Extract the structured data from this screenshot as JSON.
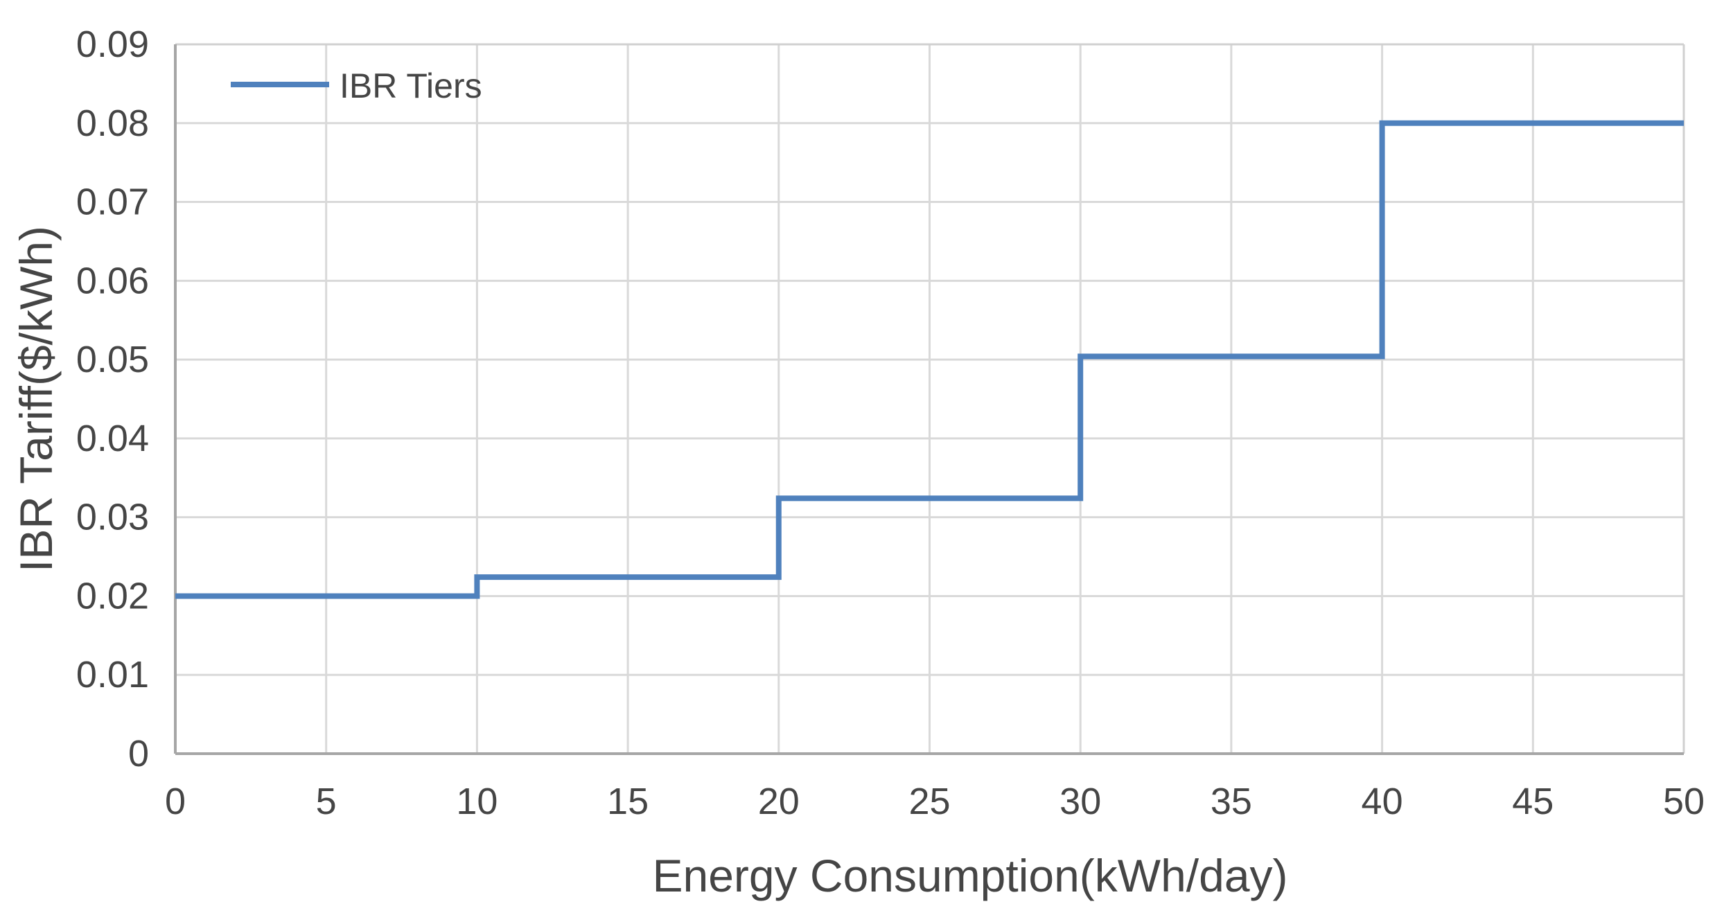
{
  "chart_data": {
    "type": "line",
    "line_style": "step",
    "title": "",
    "xlabel": "Energy Consumption(kWh/day)",
    "ylabel": "IBR Tariff($/kWh)",
    "xlim": [
      0,
      50
    ],
    "ylim": [
      0,
      0.09
    ],
    "grid": true,
    "legend_position": "top-left-inside",
    "legend": [
      {
        "label": "IBR Tiers"
      }
    ],
    "series": [
      {
        "name": "IBR Tiers",
        "color": "#4F81BD",
        "points": [
          [
            0,
            0.02
          ],
          [
            10,
            0.02
          ],
          [
            10,
            0.0224
          ],
          [
            20,
            0.0224
          ],
          [
            20,
            0.0324
          ],
          [
            30,
            0.0324
          ],
          [
            30,
            0.0504
          ],
          [
            40,
            0.0504
          ],
          [
            40,
            0.08
          ],
          [
            50,
            0.08
          ]
        ]
      }
    ],
    "tiers": [
      {
        "consumption_range_kwh_per_day": "0-10",
        "tariff_usd_per_kwh": 0.02
      },
      {
        "consumption_range_kwh_per_day": "10-20",
        "tariff_usd_per_kwh": 0.0224
      },
      {
        "consumption_range_kwh_per_day": "20-30",
        "tariff_usd_per_kwh": 0.0324
      },
      {
        "consumption_range_kwh_per_day": "30-40",
        "tariff_usd_per_kwh": 0.0504
      },
      {
        "consumption_range_kwh_per_day": "40-50",
        "tariff_usd_per_kwh": 0.08
      }
    ],
    "x_ticks": {
      "values": [
        0,
        5,
        10,
        15,
        20,
        25,
        30,
        35,
        40,
        45,
        50
      ],
      "labels": [
        "0",
        "5",
        "10",
        "15",
        "20",
        "25",
        "30",
        "35",
        "40",
        "45",
        "50"
      ]
    },
    "y_ticks": {
      "values": [
        0,
        0.01,
        0.02,
        0.03,
        0.04,
        0.05,
        0.06,
        0.07,
        0.08,
        0.09
      ],
      "labels": [
        "0",
        "0.01",
        "0.02",
        "0.03",
        "0.04",
        "0.05",
        "0.06",
        "0.07",
        "0.08",
        "0.09"
      ]
    }
  },
  "colors": {
    "series_line": "#4F81BD",
    "gridline": "#D9D9D9",
    "plot_border": "#D0D0D0",
    "axis_line": "#A6A6A6",
    "text": "#454545",
    "background": "#FFFFFF"
  }
}
